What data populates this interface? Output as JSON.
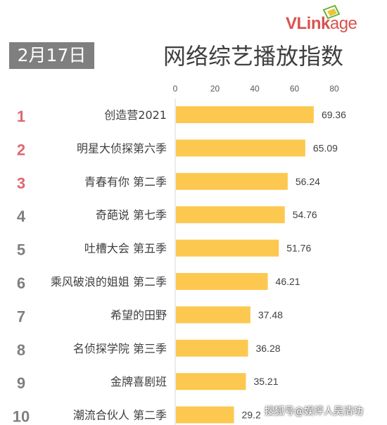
{
  "header": {
    "date": "2月17日",
    "title": "网络综艺播放指数",
    "logo_text_bold": "VLink",
    "logo_text_light": "age"
  },
  "watermark": "搜狐号@娱评人吴清功",
  "colors": {
    "bar": "#fdc850",
    "rank_top3": "#e06670",
    "rank_other": "#7f7f7f",
    "badge": "#7f7f7f"
  },
  "chart_data": {
    "type": "bar",
    "orientation": "horizontal",
    "title": "网络综艺播放指数",
    "ranks": [
      "1",
      "2",
      "3",
      "4",
      "5",
      "6",
      "7",
      "8",
      "9",
      "10"
    ],
    "categories": [
      "创造营2021",
      "明星大侦探第六季",
      "青春有你 第二季",
      "奇葩说 第七季",
      "吐槽大会 第五季",
      "乘风破浪的姐姐 第二季",
      "希望的田野",
      "名侦探学院 第三季",
      "金牌喜剧班",
      "潮流合伙人 第二季"
    ],
    "values": [
      69.36,
      65.09,
      56.24,
      54.76,
      51.76,
      46.21,
      37.48,
      36.28,
      35.21,
      29.2
    ],
    "value_labels": [
      "69.36",
      "65.09",
      "56.24",
      "54.76",
      "51.76",
      "46.21",
      "37.48",
      "36.28",
      "35.21",
      "29.2"
    ],
    "xlim": [
      0,
      80
    ],
    "xticks": [
      "0",
      "20",
      "40",
      "60",
      "80"
    ],
    "xaxis_position": "top",
    "grid": false,
    "legend": "none"
  }
}
